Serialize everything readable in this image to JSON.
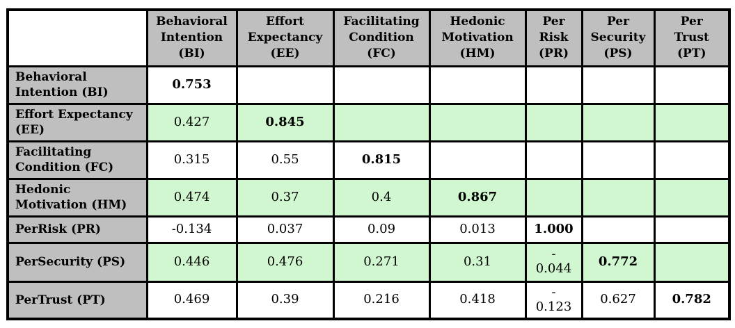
{
  "colors": {
    "header_bg": "#bfbfbf",
    "stripe_bg": "#d1f7d0",
    "border": "#000000",
    "text": "#000000"
  },
  "table": {
    "corner": "",
    "columns": [
      "Behavioral\nIntention\n(BI)",
      "Effort\nExpectancy\n(EE)",
      "Facilitating\nCondition\n(FC)",
      "Hedonic\nMotivation\n(HM)",
      "Per\nRisk\n(PR)",
      "Per\nSecurity\n(PS)",
      "Per\nTrust\n(PT)"
    ],
    "rows": [
      {
        "label": "Behavioral\nIntention (BI)",
        "values": [
          "0.753",
          "",
          "",
          "",
          "",
          "",
          ""
        ]
      },
      {
        "label": "Effort Expectancy\n(EE)",
        "values": [
          "0.427",
          "0.845",
          "",
          "",
          "",
          "",
          ""
        ]
      },
      {
        "label": "Facilitating\nCondition (FC)",
        "values": [
          "0.315",
          "0.55",
          "0.815",
          "",
          "",
          "",
          ""
        ]
      },
      {
        "label": "Hedonic\nMotivation (HM)",
        "values": [
          "0.474",
          "0.37",
          "0.4",
          "0.867",
          "",
          "",
          ""
        ]
      },
      {
        "label": "PerRisk (PR)",
        "values": [
          "-0.134",
          "0.037",
          "0.09",
          "0.013",
          "1.000",
          "",
          ""
        ]
      },
      {
        "label": "PerSecurity (PS)",
        "values": [
          "0.446",
          "0.476",
          "0.271",
          "0.31",
          "-\n0.044",
          "0.772",
          ""
        ]
      },
      {
        "label": "PerTrust (PT)",
        "values": [
          "0.469",
          "0.39",
          "0.216",
          "0.418",
          "-\n0.123",
          "0.627",
          "0.782"
        ]
      }
    ]
  }
}
